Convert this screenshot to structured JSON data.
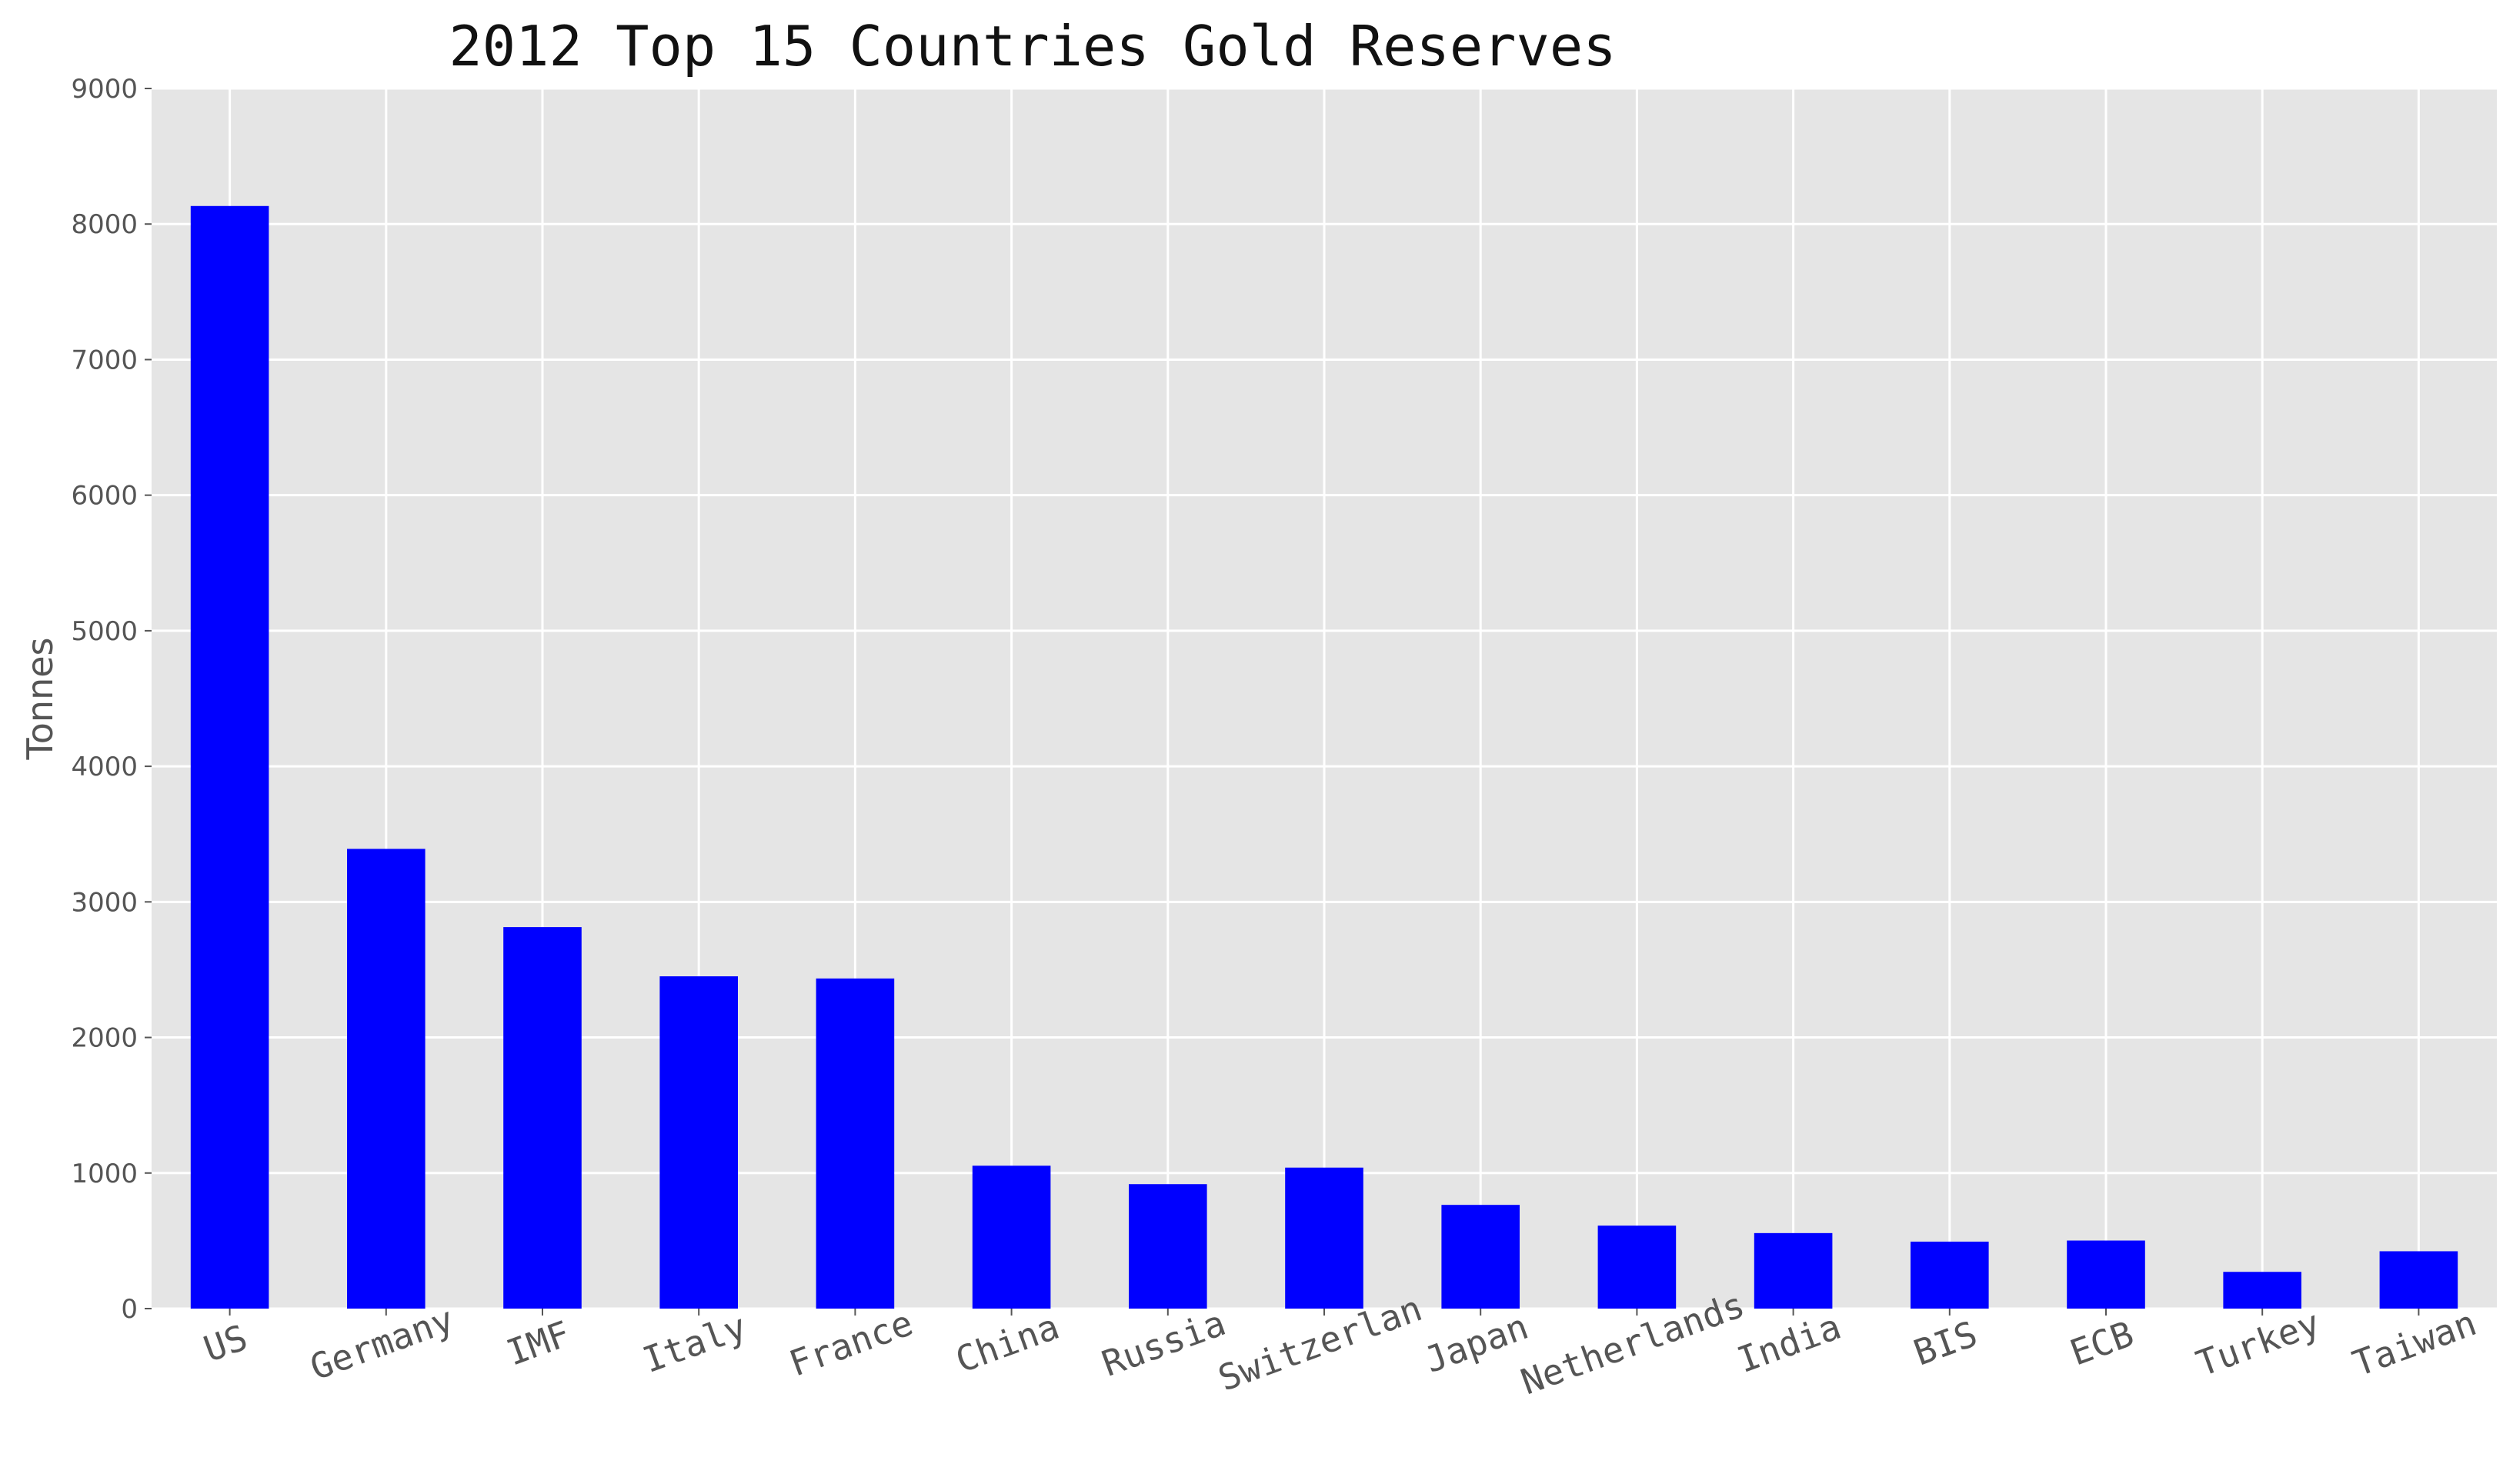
{
  "chart_data": {
    "type": "bar",
    "title": "2012  Top 15 Countries Gold Reserves",
    "xlabel": "",
    "ylabel": "Tonnes",
    "ylim": [
      0,
      9000
    ],
    "yticks": [
      0,
      1000,
      2000,
      3000,
      4000,
      5000,
      6000,
      7000,
      8000,
      9000
    ],
    "grid": true,
    "bar_color": "#0000ff",
    "background_color": "#e5e5e5",
    "categories": [
      "US",
      "Germany",
      "IMF",
      "Italy",
      "France",
      "China",
      "Russia",
      "Switzerlan",
      "Japan",
      "Netherlands",
      "India",
      "BIS",
      "ECB",
      "Turkey",
      "Taiwan"
    ],
    "values": [
      8133,
      3391,
      2814,
      2451,
      2435,
      1054,
      918,
      1040,
      765,
      612,
      557,
      494,
      502,
      271,
      423
    ]
  }
}
